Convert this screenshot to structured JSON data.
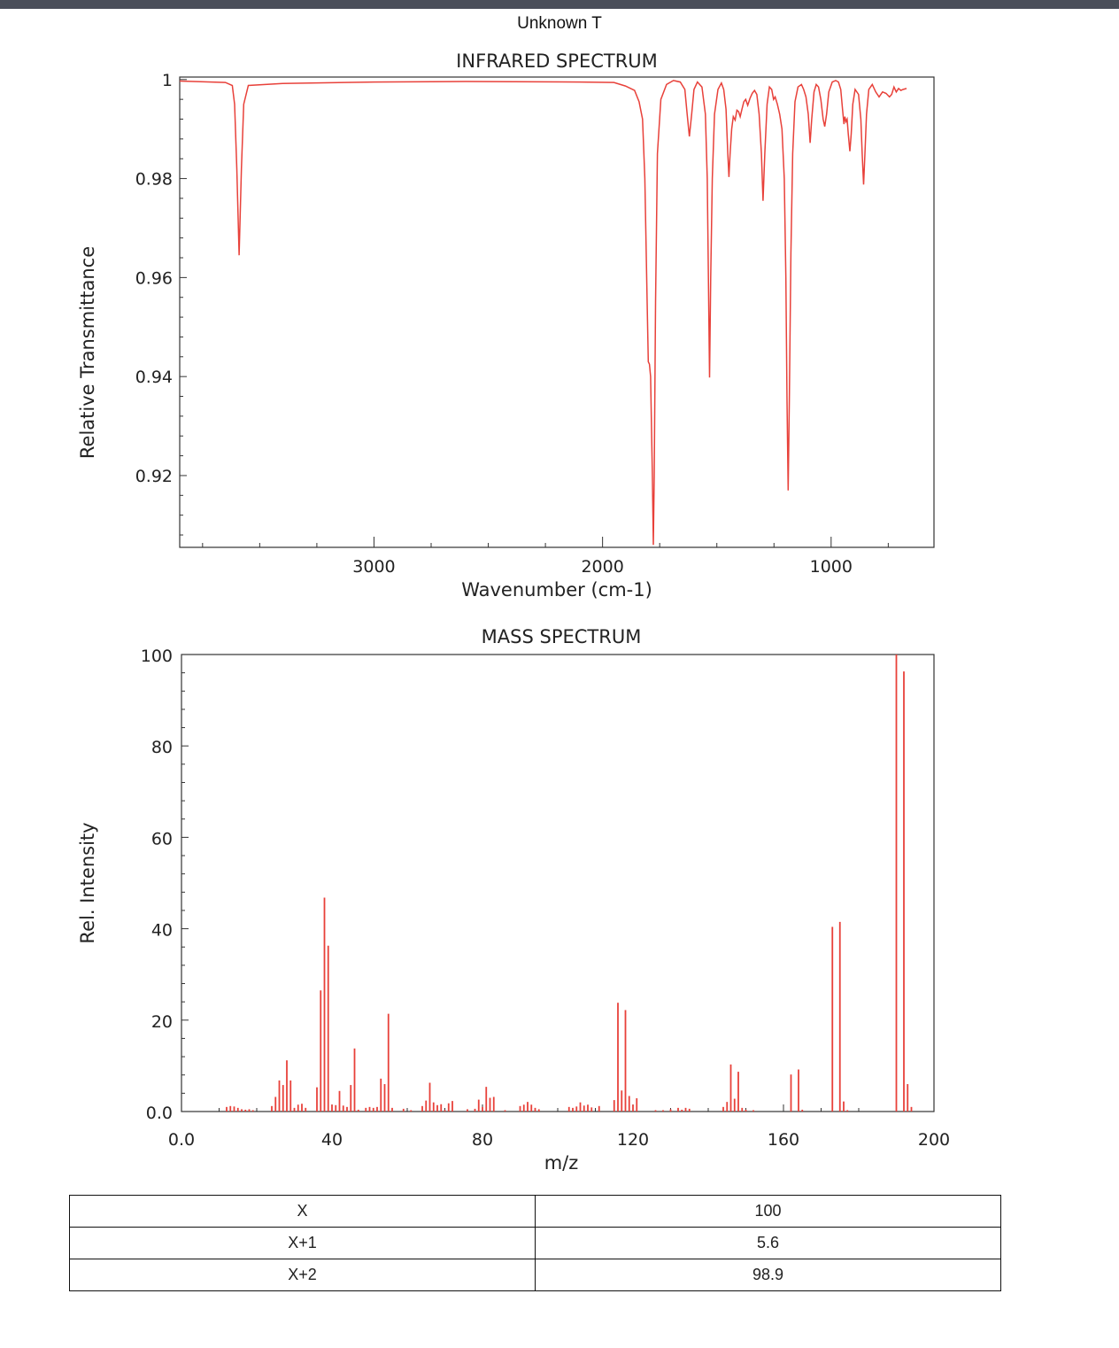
{
  "document_title": "Unknown T",
  "chart_data": [
    {
      "type": "line",
      "title": "INFRARED SPECTRUM",
      "xlabel": "Wavenumber (cm-1)",
      "ylabel": "Relative Transmittance",
      "xlim": [
        3850,
        550
      ],
      "ylim": [
        0.9055,
        1.0005
      ],
      "x_ticks": [
        3000,
        2000,
        1000
      ],
      "x_tick_labels": [
        "3000",
        "2000",
        "1000"
      ],
      "y_ticks": [
        1.0,
        0.98,
        0.96,
        0.94,
        0.92
      ],
      "y_tick_labels": [
        "1",
        "0.98",
        "0.96",
        "0.94",
        "0.92"
      ],
      "color": "#e8413a",
      "baseline": 1.0,
      "points": [
        [
          3850,
          0.9997
        ],
        [
          3650,
          0.9994
        ],
        [
          3620,
          0.9988
        ],
        [
          3610,
          0.995
        ],
        [
          3600,
          0.982
        ],
        [
          3590,
          0.9645
        ],
        [
          3580,
          0.982
        ],
        [
          3570,
          0.995
        ],
        [
          3550,
          0.9988
        ],
        [
          3400,
          0.9992
        ],
        [
          3000,
          0.9995
        ],
        [
          2600,
          0.9996
        ],
        [
          2100,
          0.9995
        ],
        [
          1950,
          0.9994
        ],
        [
          1900,
          0.9987
        ],
        [
          1860,
          0.9978
        ],
        [
          1840,
          0.9955
        ],
        [
          1825,
          0.992
        ],
        [
          1815,
          0.98
        ],
        [
          1805,
          0.955
        ],
        [
          1800,
          0.943
        ],
        [
          1795,
          0.9425
        ],
        [
          1790,
          0.94
        ],
        [
          1782,
          0.92
        ],
        [
          1778,
          0.906
        ],
        [
          1774,
          0.92
        ],
        [
          1768,
          0.955
        ],
        [
          1760,
          0.985
        ],
        [
          1745,
          0.996
        ],
        [
          1720,
          0.999
        ],
        [
          1690,
          0.9998
        ],
        [
          1660,
          0.9995
        ],
        [
          1640,
          0.998
        ],
        [
          1630,
          0.993
        ],
        [
          1620,
          0.9885
        ],
        [
          1610,
          0.993
        ],
        [
          1600,
          0.998
        ],
        [
          1585,
          0.9995
        ],
        [
          1565,
          0.9985
        ],
        [
          1550,
          0.993
        ],
        [
          1542,
          0.98
        ],
        [
          1537,
          0.96
        ],
        [
          1532,
          0.9398
        ],
        [
          1527,
          0.96
        ],
        [
          1520,
          0.98
        ],
        [
          1510,
          0.993
        ],
        [
          1495,
          0.998
        ],
        [
          1480,
          0.9993
        ],
        [
          1470,
          0.998
        ],
        [
          1460,
          0.994
        ],
        [
          1452,
          0.985
        ],
        [
          1447,
          0.9803
        ],
        [
          1442,
          0.985
        ],
        [
          1435,
          0.99
        ],
        [
          1428,
          0.9925
        ],
        [
          1420,
          0.9918
        ],
        [
          1412,
          0.9938
        ],
        [
          1405,
          0.9935
        ],
        [
          1398,
          0.9925
        ],
        [
          1390,
          0.994
        ],
        [
          1382,
          0.9955
        ],
        [
          1374,
          0.996
        ],
        [
          1365,
          0.9948
        ],
        [
          1355,
          0.9962
        ],
        [
          1345,
          0.9972
        ],
        [
          1335,
          0.9978
        ],
        [
          1325,
          0.997
        ],
        [
          1315,
          0.993
        ],
        [
          1305,
          0.985
        ],
        [
          1298,
          0.9755
        ],
        [
          1290,
          0.985
        ],
        [
          1280,
          0.995
        ],
        [
          1270,
          0.9985
        ],
        [
          1260,
          0.998
        ],
        [
          1252,
          0.996
        ],
        [
          1245,
          0.9965
        ],
        [
          1235,
          0.995
        ],
        [
          1225,
          0.993
        ],
        [
          1215,
          0.99
        ],
        [
          1205,
          0.98
        ],
        [
          1198,
          0.96
        ],
        [
          1193,
          0.935
        ],
        [
          1188,
          0.917
        ],
        [
          1183,
          0.935
        ],
        [
          1176,
          0.965
        ],
        [
          1168,
          0.985
        ],
        [
          1158,
          0.9955
        ],
        [
          1145,
          0.9985
        ],
        [
          1130,
          0.999
        ],
        [
          1120,
          0.998
        ],
        [
          1110,
          0.9965
        ],
        [
          1100,
          0.993
        ],
        [
          1092,
          0.9872
        ],
        [
          1085,
          0.992
        ],
        [
          1075,
          0.9975
        ],
        [
          1065,
          0.999
        ],
        [
          1055,
          0.9985
        ],
        [
          1045,
          0.996
        ],
        [
          1035,
          0.992
        ],
        [
          1028,
          0.9905
        ],
        [
          1020,
          0.993
        ],
        [
          1010,
          0.9975
        ],
        [
          995,
          0.9995
        ],
        [
          980,
          0.9998
        ],
        [
          968,
          0.9995
        ],
        [
          958,
          0.998
        ],
        [
          950,
          0.994
        ],
        [
          944,
          0.991
        ],
        [
          940,
          0.9925
        ],
        [
          935,
          0.9915
        ],
        [
          930,
          0.992
        ],
        [
          925,
          0.989
        ],
        [
          918,
          0.9855
        ],
        [
          912,
          0.989
        ],
        [
          905,
          0.995
        ],
        [
          895,
          0.998
        ],
        [
          880,
          0.997
        ],
        [
          870,
          0.992
        ],
        [
          864,
          0.985
        ],
        [
          858,
          0.9788
        ],
        [
          852,
          0.985
        ],
        [
          845,
          0.993
        ],
        [
          835,
          0.998
        ],
        [
          820,
          0.999
        ],
        [
          805,
          0.9975
        ],
        [
          790,
          0.9965
        ],
        [
          775,
          0.9975
        ],
        [
          760,
          0.9972
        ],
        [
          745,
          0.9965
        ],
        [
          735,
          0.997
        ],
        [
          725,
          0.9985
        ],
        [
          715,
          0.9975
        ],
        [
          705,
          0.9982
        ],
        [
          695,
          0.9978
        ],
        [
          685,
          0.998
        ],
        [
          670,
          0.9982
        ]
      ]
    },
    {
      "type": "bar",
      "title": "MASS SPECTRUM",
      "xlabel": "m/z",
      "ylabel": "Rel. Intensity",
      "xlim": [
        0,
        200
      ],
      "ylim": [
        0,
        100
      ],
      "x_ticks": [
        0,
        40,
        80,
        120,
        160,
        200
      ],
      "x_tick_labels": [
        "0.0",
        "40",
        "80",
        "120",
        "160",
        "200"
      ],
      "y_ticks": [
        0,
        20,
        40,
        60,
        80,
        100
      ],
      "y_tick_labels": [
        "0.0",
        "20",
        "40",
        "60",
        "80",
        "100"
      ],
      "color": "#e8413a",
      "peaks": [
        [
          12,
          1.0
        ],
        [
          13,
          1.2
        ],
        [
          14,
          1.1
        ],
        [
          15,
          0.8
        ],
        [
          16,
          0.5
        ],
        [
          17,
          0.4
        ],
        [
          18,
          0.5
        ],
        [
          19,
          0.3
        ],
        [
          24,
          1.2
        ],
        [
          25,
          3.2
        ],
        [
          26,
          6.8
        ],
        [
          27,
          5.8
        ],
        [
          28,
          11.2
        ],
        [
          29,
          6.8
        ],
        [
          30,
          0.8
        ],
        [
          31,
          1.5
        ],
        [
          32,
          1.7
        ],
        [
          33,
          0.8
        ],
        [
          36,
          5.3
        ],
        [
          37,
          26.5
        ],
        [
          38,
          46.8
        ],
        [
          39,
          36.3
        ],
        [
          40,
          1.5
        ],
        [
          41,
          1.4
        ],
        [
          42,
          4.5
        ],
        [
          43,
          1.3
        ],
        [
          44,
          1.0
        ],
        [
          45,
          5.8
        ],
        [
          46,
          13.8
        ],
        [
          47,
          0.4
        ],
        [
          49,
          0.8
        ],
        [
          50,
          1.0
        ],
        [
          51,
          0.8
        ],
        [
          52,
          1.0
        ],
        [
          53,
          7.2
        ],
        [
          54,
          6.0
        ],
        [
          55,
          21.4
        ],
        [
          56,
          0.8
        ],
        [
          59,
          0.6
        ],
        [
          61,
          0.3
        ],
        [
          64,
          1.2
        ],
        [
          65,
          2.4
        ],
        [
          66,
          6.3
        ],
        [
          67,
          2.0
        ],
        [
          68,
          1.4
        ],
        [
          69,
          1.6
        ],
        [
          70,
          0.3
        ],
        [
          71,
          1.8
        ],
        [
          72,
          2.3
        ],
        [
          76,
          0.5
        ],
        [
          78,
          0.6
        ],
        [
          79,
          2.6
        ],
        [
          80,
          1.0
        ],
        [
          81,
          5.4
        ],
        [
          82,
          3.0
        ],
        [
          83,
          3.2
        ],
        [
          86,
          0.3
        ],
        [
          90,
          1.2
        ],
        [
          91,
          1.5
        ],
        [
          92,
          2.1
        ],
        [
          93,
          1.5
        ],
        [
          94,
          0.8
        ],
        [
          95,
          0.5
        ],
        [
          103,
          1.0
        ],
        [
          104,
          0.8
        ],
        [
          105,
          1.1
        ],
        [
          106,
          2.0
        ],
        [
          107,
          1.3
        ],
        [
          108,
          1.5
        ],
        [
          109,
          0.9
        ],
        [
          111,
          1.2
        ],
        [
          115,
          2.5
        ],
        [
          116,
          23.8
        ],
        [
          117,
          4.6
        ],
        [
          118,
          22.2
        ],
        [
          119,
          3.4
        ],
        [
          120,
          1.5
        ],
        [
          121,
          2.9
        ],
        [
          126,
          0.3
        ],
        [
          128,
          0.3
        ],
        [
          130,
          0.5
        ],
        [
          132,
          0.8
        ],
        [
          133,
          0.4
        ],
        [
          134,
          0.8
        ],
        [
          135,
          0.6
        ],
        [
          144,
          1.0
        ],
        [
          145,
          2.1
        ],
        [
          146,
          10.3
        ],
        [
          147,
          2.8
        ],
        [
          148,
          8.7
        ],
        [
          149,
          0.8
        ],
        [
          150,
          0.4
        ],
        [
          152,
          0.3
        ],
        [
          162,
          8.1
        ],
        [
          164,
          9.2
        ],
        [
          165,
          0.4
        ],
        [
          173,
          40.4
        ],
        [
          175,
          41.5
        ],
        [
          176,
          2.2
        ],
        [
          177,
          0.3
        ],
        [
          190,
          100
        ],
        [
          192,
          96.3
        ],
        [
          193,
          6.0
        ],
        [
          194,
          1.0
        ]
      ]
    }
  ],
  "isotope_table": {
    "rows": [
      {
        "label": "X",
        "value": "100"
      },
      {
        "label": "X+1",
        "value": "5.6"
      },
      {
        "label": "X+2",
        "value": "98.9"
      }
    ]
  }
}
